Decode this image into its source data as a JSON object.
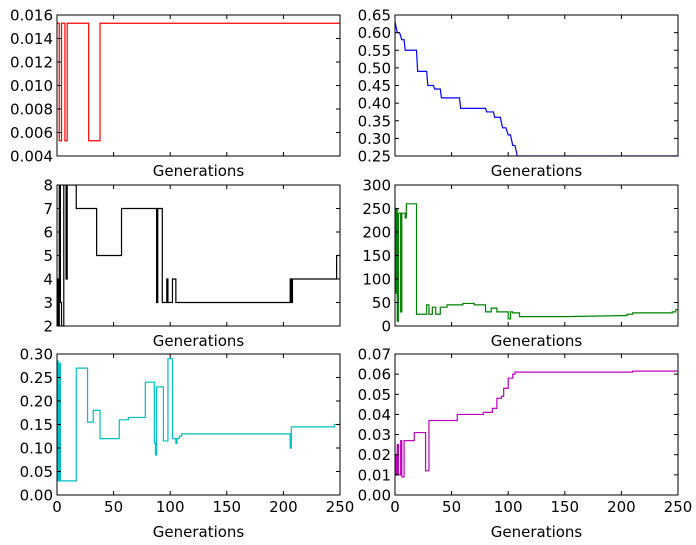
{
  "chart_data": [
    {
      "type": "line",
      "color": "#ff0000",
      "xlabel": "Generations",
      "xlim": [
        0,
        250
      ],
      "ylim": [
        0.004,
        0.016
      ],
      "yticks": [
        "0.004",
        "0.006",
        "0.008",
        "0.010",
        "0.012",
        "0.014",
        "0.016"
      ],
      "xticks": [],
      "series": [
        {
          "x": [
            0,
            2,
            2,
            4,
            4,
            7,
            7,
            9,
            9,
            28,
            28,
            38,
            38,
            250
          ],
          "y": [
            0.0153,
            0.0153,
            0.0053,
            0.0053,
            0.0153,
            0.0153,
            0.0053,
            0.0053,
            0.0153,
            0.0153,
            0.0053,
            0.0053,
            0.0153,
            0.0153
          ]
        }
      ]
    },
    {
      "type": "line",
      "color": "#0000ff",
      "xlabel": "Generations",
      "xlim": [
        0,
        250
      ],
      "ylim": [
        0.25,
        0.65
      ],
      "yticks": [
        "0.25",
        "0.30",
        "0.35",
        "0.40",
        "0.45",
        "0.50",
        "0.55",
        "0.60",
        "0.65"
      ],
      "xticks": [],
      "series": [
        {
          "x": [
            0,
            2,
            4,
            6,
            8,
            9,
            11,
            12,
            19,
            20,
            28,
            29,
            34,
            35,
            40,
            41,
            57,
            58,
            80,
            81,
            87,
            88,
            93,
            95,
            98,
            100,
            102,
            104,
            106,
            108,
            150,
            200,
            250
          ],
          "y": [
            0.63,
            0.6,
            0.6,
            0.58,
            0.58,
            0.55,
            0.55,
            0.55,
            0.55,
            0.49,
            0.49,
            0.45,
            0.45,
            0.44,
            0.44,
            0.415,
            0.415,
            0.385,
            0.385,
            0.375,
            0.375,
            0.36,
            0.36,
            0.33,
            0.33,
            0.31,
            0.31,
            0.28,
            0.28,
            0.25,
            0.25,
            0.25,
            0.25
          ]
        }
      ]
    },
    {
      "type": "line",
      "color": "#000000",
      "xlabel": "Generations",
      "xlim": [
        0,
        250
      ],
      "ylim": [
        2,
        8
      ],
      "yticks": [
        "2",
        "3",
        "4",
        "5",
        "6",
        "7",
        "8"
      ],
      "xticks": [],
      "series": [
        {
          "x": [
            0,
            1,
            1,
            2,
            2,
            3,
            3,
            4,
            4,
            6,
            6,
            8,
            8,
            9,
            9,
            17,
            17,
            35,
            35,
            57,
            57,
            88,
            88,
            89,
            89,
            93,
            93,
            97,
            97,
            98,
            98,
            102,
            102,
            105,
            105,
            206,
            206,
            207,
            207,
            208,
            208,
            247,
            247,
            250
          ],
          "y": [
            4,
            4,
            2,
            2,
            8,
            8,
            3,
            3,
            2,
            2,
            8,
            8,
            4,
            4,
            8,
            8,
            7,
            7,
            5,
            5,
            7,
            7,
            3,
            3,
            7,
            7,
            3,
            3,
            4,
            4,
            3,
            3,
            4,
            4,
            3,
            3,
            4,
            4,
            3,
            3,
            4,
            4,
            5,
            5
          ]
        }
      ]
    },
    {
      "type": "line",
      "color": "#008000",
      "xlabel": "Generations",
      "xlim": [
        0,
        250
      ],
      "ylim": [
        0,
        300
      ],
      "yticks": [
        "0",
        "50",
        "100",
        "150",
        "200",
        "250",
        "300"
      ],
      "xticks": [],
      "series": [
        {
          "x": [
            0,
            1,
            1,
            2,
            2,
            3,
            3,
            5,
            5,
            6,
            6,
            9,
            9,
            10,
            10,
            19,
            19,
            28,
            28,
            30,
            30,
            33,
            33,
            36,
            36,
            40,
            40,
            46,
            46,
            60,
            60,
            70,
            70,
            80,
            80,
            85,
            85,
            90,
            90,
            100,
            100,
            102,
            102,
            104,
            104,
            110,
            110,
            150,
            200,
            205,
            205,
            210,
            210,
            245,
            245,
            248,
            248,
            250
          ],
          "y": [
            70,
            70,
            250,
            250,
            10,
            10,
            240,
            240,
            30,
            30,
            240,
            240,
            230,
            230,
            260,
            260,
            25,
            25,
            45,
            45,
            25,
            25,
            40,
            40,
            25,
            25,
            40,
            40,
            45,
            45,
            48,
            48,
            45,
            45,
            30,
            30,
            38,
            38,
            30,
            30,
            15,
            15,
            30,
            30,
            28,
            28,
            20,
            20,
            22,
            22,
            25,
            25,
            28,
            28,
            30,
            30,
            35,
            35
          ]
        }
      ]
    },
    {
      "type": "line",
      "color": "#00bfbf",
      "xlabel": "Generations",
      "xlim": [
        0,
        250
      ],
      "ylim": [
        0,
        0.3
      ],
      "yticks": [
        "0.00",
        "0.05",
        "0.10",
        "0.15",
        "0.20",
        "0.25",
        "0.30"
      ],
      "xticks": [
        "0",
        "50",
        "100",
        "150",
        "200",
        "250"
      ],
      "series": [
        {
          "x": [
            0,
            1,
            1,
            2,
            2,
            3,
            3,
            5,
            5,
            8,
            8,
            17,
            17,
            27,
            27,
            32,
            32,
            38,
            38,
            55,
            55,
            63,
            63,
            78,
            78,
            86,
            86,
            87,
            87,
            88,
            88,
            89,
            89,
            94,
            94,
            98,
            98,
            102,
            102,
            105,
            105,
            106,
            106,
            108,
            108,
            110,
            110,
            120,
            120,
            206,
            206,
            207,
            207,
            210,
            210,
            245,
            245,
            250
          ],
          "y": [
            0.285,
            0.285,
            0.03,
            0.03,
            0.28,
            0.28,
            0.03,
            0.03,
            0.03,
            0.03,
            0.03,
            0.03,
            0.27,
            0.27,
            0.155,
            0.155,
            0.18,
            0.18,
            0.12,
            0.12,
            0.16,
            0.16,
            0.165,
            0.165,
            0.24,
            0.24,
            0.11,
            0.11,
            0.085,
            0.085,
            0.23,
            0.23,
            0.23,
            0.23,
            0.115,
            0.115,
            0.29,
            0.29,
            0.12,
            0.12,
            0.11,
            0.11,
            0.12,
            0.12,
            0.125,
            0.125,
            0.13,
            0.13,
            0.13,
            0.13,
            0.1,
            0.1,
            0.145,
            0.145,
            0.145,
            0.145,
            0.15,
            0.15
          ]
        }
      ]
    },
    {
      "type": "line",
      "color": "#bf00bf",
      "xlabel": "Generations",
      "xlim": [
        0,
        250
      ],
      "ylim": [
        0,
        0.07
      ],
      "yticks": [
        "0.00",
        "0.01",
        "0.02",
        "0.03",
        "0.04",
        "0.05",
        "0.06",
        "0.07"
      ],
      "xticks": [
        "0",
        "50",
        "100",
        "150",
        "200",
        "250"
      ],
      "series": [
        {
          "x": [
            0,
            1,
            1,
            2,
            2,
            3,
            3,
            5,
            5,
            6,
            6,
            8,
            8,
            9,
            9,
            17,
            17,
            27,
            27,
            30,
            30,
            38,
            38,
            55,
            55,
            63,
            63,
            78,
            78,
            86,
            86,
            90,
            90,
            94,
            94,
            96,
            96,
            100,
            100,
            104,
            104,
            106,
            106,
            108,
            108,
            210,
            210,
            250
          ],
          "y": [
            0.02,
            0.02,
            0.01,
            0.01,
            0.025,
            0.025,
            0.01,
            0.01,
            0.027,
            0.027,
            0.009,
            0.009,
            0.027,
            0.027,
            0.027,
            0.027,
            0.031,
            0.031,
            0.012,
            0.012,
            0.037,
            0.037,
            0.037,
            0.037,
            0.04,
            0.04,
            0.04,
            0.04,
            0.041,
            0.041,
            0.043,
            0.043,
            0.048,
            0.048,
            0.049,
            0.049,
            0.053,
            0.053,
            0.058,
            0.058,
            0.06,
            0.06,
            0.061,
            0.061,
            0.061,
            0.061,
            0.0615,
            0.0615
          ]
        }
      ]
    }
  ]
}
